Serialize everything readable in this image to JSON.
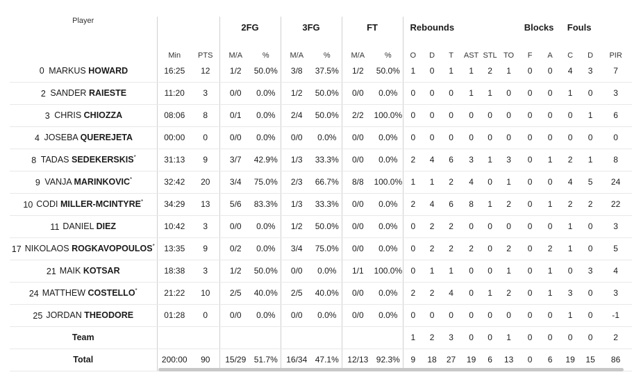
{
  "groups": {
    "fg2": "2FG",
    "fg3": "3FG",
    "ft": "FT",
    "rebounds": "Rebounds",
    "blocks": "Blocks",
    "fouls": "Fouls"
  },
  "columns": {
    "player": "Player",
    "min": "Min",
    "pts": "PTS",
    "fg2_ma": "M/A",
    "fg2_pct": "%",
    "fg3_ma": "M/A",
    "fg3_pct": "%",
    "ft_ma": "M/A",
    "ft_pct": "%",
    "reb_o": "O",
    "reb_d": "D",
    "reb_t": "T",
    "ast": "AST",
    "stl": "STL",
    "to": "TO",
    "blk_f": "F",
    "blk_a": "A",
    "foul_c": "C",
    "foul_d": "D",
    "pir": "PIR"
  },
  "players": [
    {
      "num": "0",
      "first": "MARKUS",
      "last": "HOWARD",
      "star": "",
      "min": "16:25",
      "pts": "12",
      "fg2": "1/2",
      "fg2p": "50.0%",
      "fg3": "3/8",
      "fg3p": "37.5%",
      "ft": "1/2",
      "ftp": "50.0%",
      "o": "1",
      "d": "0",
      "t": "1",
      "ast": "1",
      "stl": "2",
      "to": "1",
      "bf": "0",
      "ba": "0",
      "fc": "4",
      "fd": "3",
      "pir": "7"
    },
    {
      "num": "2",
      "first": "SANDER",
      "last": "RAIESTE",
      "star": "",
      "min": "11:20",
      "pts": "3",
      "fg2": "0/0",
      "fg2p": "0.0%",
      "fg3": "1/2",
      "fg3p": "50.0%",
      "ft": "0/0",
      "ftp": "0.0%",
      "o": "0",
      "d": "0",
      "t": "0",
      "ast": "1",
      "stl": "1",
      "to": "0",
      "bf": "0",
      "ba": "0",
      "fc": "1",
      "fd": "0",
      "pir": "3"
    },
    {
      "num": "3",
      "first": "CHRIS",
      "last": "CHIOZZA",
      "star": "",
      "min": "08:06",
      "pts": "8",
      "fg2": "0/1",
      "fg2p": "0.0%",
      "fg3": "2/4",
      "fg3p": "50.0%",
      "ft": "2/2",
      "ftp": "100.0%",
      "o": "0",
      "d": "0",
      "t": "0",
      "ast": "0",
      "stl": "0",
      "to": "0",
      "bf": "0",
      "ba": "0",
      "fc": "0",
      "fd": "1",
      "pir": "6"
    },
    {
      "num": "4",
      "first": "JOSEBA",
      "last": "QUEREJETA",
      "star": "",
      "min": "00:00",
      "pts": "0",
      "fg2": "0/0",
      "fg2p": "0.0%",
      "fg3": "0/0",
      "fg3p": "0.0%",
      "ft": "0/0",
      "ftp": "0.0%",
      "o": "0",
      "d": "0",
      "t": "0",
      "ast": "0",
      "stl": "0",
      "to": "0",
      "bf": "0",
      "ba": "0",
      "fc": "0",
      "fd": "0",
      "pir": "0"
    },
    {
      "num": "8",
      "first": "TADAS",
      "last": "SEDEKERSKIS",
      "star": "*",
      "min": "31:13",
      "pts": "9",
      "fg2": "3/7",
      "fg2p": "42.9%",
      "fg3": "1/3",
      "fg3p": "33.3%",
      "ft": "0/0",
      "ftp": "0.0%",
      "o": "2",
      "d": "4",
      "t": "6",
      "ast": "3",
      "stl": "1",
      "to": "3",
      "bf": "0",
      "ba": "1",
      "fc": "2",
      "fd": "1",
      "pir": "8"
    },
    {
      "num": "9",
      "first": "VANJA",
      "last": "MARINKOVIC",
      "star": "*",
      "min": "32:42",
      "pts": "20",
      "fg2": "3/4",
      "fg2p": "75.0%",
      "fg3": "2/3",
      "fg3p": "66.7%",
      "ft": "8/8",
      "ftp": "100.0%",
      "o": "1",
      "d": "1",
      "t": "2",
      "ast": "4",
      "stl": "0",
      "to": "1",
      "bf": "0",
      "ba": "0",
      "fc": "4",
      "fd": "5",
      "pir": "24"
    },
    {
      "num": "10",
      "first": "CODI",
      "last": "MILLER-MCINTYRE",
      "star": "*",
      "min": "34:29",
      "pts": "13",
      "fg2": "5/6",
      "fg2p": "83.3%",
      "fg3": "1/3",
      "fg3p": "33.3%",
      "ft": "0/0",
      "ftp": "0.0%",
      "o": "2",
      "d": "4",
      "t": "6",
      "ast": "8",
      "stl": "1",
      "to": "2",
      "bf": "0",
      "ba": "1",
      "fc": "2",
      "fd": "2",
      "pir": "22"
    },
    {
      "num": "11",
      "first": "DANIEL",
      "last": "DIEZ",
      "star": "",
      "min": "10:42",
      "pts": "3",
      "fg2": "0/0",
      "fg2p": "0.0%",
      "fg3": "1/2",
      "fg3p": "50.0%",
      "ft": "0/0",
      "ftp": "0.0%",
      "o": "0",
      "d": "2",
      "t": "2",
      "ast": "0",
      "stl": "0",
      "to": "0",
      "bf": "0",
      "ba": "0",
      "fc": "1",
      "fd": "0",
      "pir": "3"
    },
    {
      "num": "17",
      "first": "NIKOLAOS",
      "last": "ROGKAVOPOULOS",
      "star": "*",
      "min": "13:35",
      "pts": "9",
      "fg2": "0/2",
      "fg2p": "0.0%",
      "fg3": "3/4",
      "fg3p": "75.0%",
      "ft": "0/0",
      "ftp": "0.0%",
      "o": "0",
      "d": "2",
      "t": "2",
      "ast": "2",
      "stl": "0",
      "to": "2",
      "bf": "0",
      "ba": "2",
      "fc": "1",
      "fd": "0",
      "pir": "5"
    },
    {
      "num": "21",
      "first": "MAIK",
      "last": "KOTSAR",
      "star": "",
      "min": "18:38",
      "pts": "3",
      "fg2": "1/2",
      "fg2p": "50.0%",
      "fg3": "0/0",
      "fg3p": "0.0%",
      "ft": "1/1",
      "ftp": "100.0%",
      "o": "0",
      "d": "1",
      "t": "1",
      "ast": "0",
      "stl": "0",
      "to": "1",
      "bf": "0",
      "ba": "1",
      "fc": "0",
      "fd": "3",
      "pir": "4"
    },
    {
      "num": "24",
      "first": "MATTHEW",
      "last": "COSTELLO",
      "star": "*",
      "min": "21:22",
      "pts": "10",
      "fg2": "2/5",
      "fg2p": "40.0%",
      "fg3": "2/5",
      "fg3p": "40.0%",
      "ft": "0/0",
      "ftp": "0.0%",
      "o": "2",
      "d": "2",
      "t": "4",
      "ast": "0",
      "stl": "1",
      "to": "2",
      "bf": "0",
      "ba": "1",
      "fc": "3",
      "fd": "0",
      "pir": "3"
    },
    {
      "num": "25",
      "first": "JORDAN",
      "last": "THEODORE",
      "star": "",
      "min": "01:28",
      "pts": "0",
      "fg2": "0/0",
      "fg2p": "0.0%",
      "fg3": "0/0",
      "fg3p": "0.0%",
      "ft": "0/0",
      "ftp": "0.0%",
      "o": "0",
      "d": "0",
      "t": "0",
      "ast": "0",
      "stl": "0",
      "to": "0",
      "bf": "0",
      "ba": "0",
      "fc": "1",
      "fd": "0",
      "pir": "-1"
    }
  ],
  "team": {
    "label": "Team",
    "o": "1",
    "d": "2",
    "t": "3",
    "ast": "0",
    "stl": "0",
    "to": "1",
    "bf": "0",
    "ba": "0",
    "fc": "0",
    "fd": "0",
    "pir": "2"
  },
  "total": {
    "label": "Total",
    "min": "200:00",
    "pts": "90",
    "fg2": "15/29",
    "fg2p": "51.7%",
    "fg3": "16/34",
    "fg3p": "47.1%",
    "ft": "12/13",
    "ftp": "92.3%",
    "o": "9",
    "d": "18",
    "t": "27",
    "ast": "19",
    "stl": "6",
    "to": "13",
    "bf": "0",
    "ba": "6",
    "fc": "19",
    "fd": "15",
    "pir": "86"
  }
}
